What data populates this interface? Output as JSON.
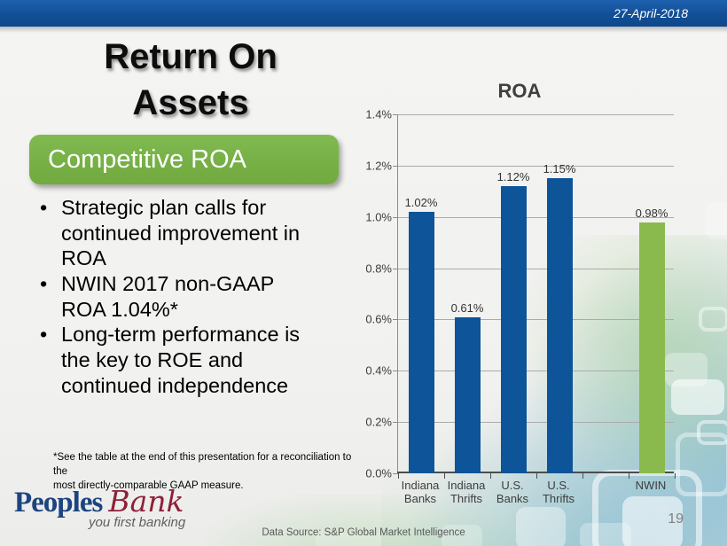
{
  "header": {
    "date": "27-April-2018",
    "bar_color": "#134f96"
  },
  "title": "Return On\nAssets",
  "subtitle": "Competitive ROA",
  "subtitle_color": "#76af44",
  "bullets": [
    "Strategic plan calls for\ncontinued improvement in\nROA",
    "NWIN 2017 non-GAAP\nROA 1.04%*",
    "Long-term performance is\nthe key to ROE and\ncontinued independence"
  ],
  "footnote": "*See the table at the end of this presentation for a reconciliation to the\nmost directly-comparable GAAP measure.",
  "logo": {
    "name_part1": "Peoples",
    "name_part2": "Bank",
    "tagline": "you first banking",
    "blue": "#1c4480",
    "red": "#8e2038"
  },
  "data_source": "Data Source: S&P Global Market Intelligence",
  "page_number": "19",
  "chart_data": {
    "type": "bar",
    "title": "ROA",
    "ylim": [
      0,
      1.4
    ],
    "ytick_labels": [
      "0.0%",
      "0.2%",
      "0.4%",
      "0.6%",
      "0.8%",
      "1.0%",
      "1.2%",
      "1.4%"
    ],
    "grid": true,
    "legend_position": "none",
    "bar_color_default": "#0d5499",
    "bar_color_highlight": "#8aba4d",
    "bars": [
      {
        "category": "Indiana\nBanks",
        "value": 1.02,
        "label": "1.02%",
        "color": "#0d5499"
      },
      {
        "category": "Indiana\nThrifts",
        "value": 0.61,
        "label": "0.61%",
        "color": "#0d5499"
      },
      {
        "category": "U.S.\nBanks",
        "value": 1.12,
        "label": "1.12%",
        "color": "#0d5499"
      },
      {
        "category": "U.S.\nThrifts",
        "value": 1.15,
        "label": "1.15%",
        "color": "#0d5499"
      },
      {
        "category": "",
        "value": null,
        "label": "",
        "color": null
      },
      {
        "category": "NWIN",
        "value": 0.98,
        "label": "0.98%",
        "color": "#8aba4d"
      }
    ]
  }
}
